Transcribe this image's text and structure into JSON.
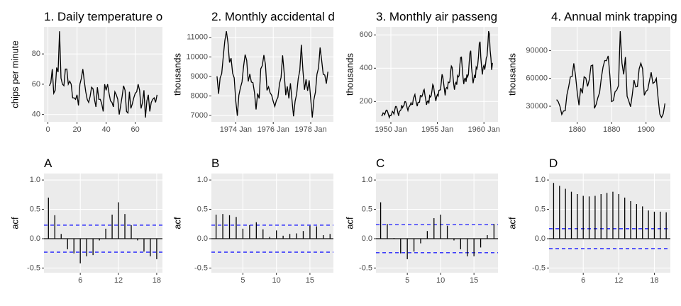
{
  "chart_data": [
    {
      "type": "line",
      "title": "1. Daily temperature o",
      "y_label": "chips per minute",
      "color": "#000000",
      "x": [
        1,
        2,
        3,
        4,
        5,
        6,
        7,
        8,
        9,
        10,
        11,
        12,
        13,
        14,
        15,
        16,
        17,
        18,
        19,
        20,
        21,
        22,
        23,
        24,
        25,
        26,
        27,
        28,
        29,
        30,
        31,
        32,
        33,
        34,
        35,
        36,
        37,
        38,
        39,
        40,
        41,
        42,
        43,
        44,
        45,
        46,
        47,
        48,
        49,
        50,
        51,
        52,
        53,
        54,
        55,
        56,
        57,
        58,
        59,
        60,
        61,
        62,
        63,
        64,
        65,
        66,
        67,
        68,
        69,
        70,
        71,
        72,
        73,
        74,
        75
      ],
      "values": [
        59,
        61,
        70,
        54,
        56,
        71,
        68,
        95,
        64,
        60,
        59,
        70,
        70,
        60,
        62,
        60,
        51,
        51,
        50,
        53,
        46,
        60,
        64,
        70,
        62,
        55,
        50,
        48,
        52,
        58,
        57,
        50,
        45,
        58,
        50,
        50,
        47,
        42,
        60,
        56,
        60,
        54,
        49,
        48,
        45,
        55,
        53,
        50,
        40,
        46,
        52,
        59,
        56,
        42,
        41,
        55,
        44,
        47,
        51,
        54,
        55,
        60,
        56,
        44,
        48,
        56,
        38,
        49,
        53,
        42,
        48,
        50,
        51,
        48,
        53
      ],
      "xlim": [
        -2.7,
        78.7
      ],
      "ylim": [
        35.15,
        97.85
      ],
      "xticks": [
        0,
        20,
        40,
        60
      ],
      "yticks": [
        40,
        60,
        80
      ]
    },
    {
      "type": "line",
      "title": "2. Monthly accidental d",
      "y_label": "thousands",
      "color": "#000000",
      "x": [
        "1973-01",
        "1973-02",
        "1973-03",
        "1973-04",
        "1973-05",
        "1973-06",
        "1973-07",
        "1973-08",
        "1973-09",
        "1973-10",
        "1973-11",
        "1973-12",
        "1974-01",
        "1974-02",
        "1974-03",
        "1974-04",
        "1974-05",
        "1974-06",
        "1974-07",
        "1974-08",
        "1974-09",
        "1974-10",
        "1974-11",
        "1974-12",
        "1975-01",
        "1975-02",
        "1975-03",
        "1975-04",
        "1975-05",
        "1975-06",
        "1975-07",
        "1975-08",
        "1975-09",
        "1975-10",
        "1975-11",
        "1975-12",
        "1976-01",
        "1976-02",
        "1976-03",
        "1976-04",
        "1976-05",
        "1976-06",
        "1976-07",
        "1976-08",
        "1976-09",
        "1976-10",
        "1976-11",
        "1976-12",
        "1977-01",
        "1977-02",
        "1977-03",
        "1977-04",
        "1977-05",
        "1977-06",
        "1977-07",
        "1977-08",
        "1977-09",
        "1977-10",
        "1977-11",
        "1977-12",
        "1978-01",
        "1978-02",
        "1978-03",
        "1978-04",
        "1978-05",
        "1978-06",
        "1978-07",
        "1978-08",
        "1978-09",
        "1978-10",
        "1978-11",
        "1978-12"
      ],
      "values": [
        9007,
        8106,
        8928,
        9137,
        10017,
        10826,
        11317,
        10744,
        9713,
        9938,
        9161,
        8927,
        7750,
        6981,
        8038,
        8422,
        8714,
        9512,
        10120,
        9823,
        8743,
        9129,
        8710,
        8680,
        8162,
        7306,
        8124,
        7870,
        9387,
        9556,
        10093,
        9620,
        8285,
        8466,
        8160,
        8034,
        7717,
        7461,
        7767,
        7925,
        8623,
        8945,
        10078,
        9179,
        8037,
        8488,
        7874,
        8647,
        7792,
        6957,
        7726,
        8106,
        8890,
        9299,
        10625,
        9302,
        8314,
        8850,
        8265,
        8796,
        7836,
        6892,
        7791,
        8192,
        9115,
        9434,
        10484,
        9827,
        9110,
        9070,
        8633,
        9240
      ],
      "xlim": [
        1972.7,
        1979.21
      ],
      "ylim": [
        6671,
        11538
      ],
      "xticks": [
        {
          "value": 1974,
          "label": "1974 Jan"
        },
        {
          "value": 1976,
          "label": "1976 Jan"
        },
        {
          "value": 1978,
          "label": "1978 Jan"
        }
      ],
      "yticks": [
        7000,
        8000,
        9000,
        10000,
        11000
      ]
    },
    {
      "type": "line",
      "title": "3. Monthly air passeng",
      "y_label": "thousands",
      "color": "#000000",
      "x": [
        "1949-01",
        "1949-02",
        "1949-03",
        "1949-04",
        "1949-05",
        "1949-06",
        "1949-07",
        "1949-08",
        "1949-09",
        "1949-10",
        "1949-11",
        "1949-12",
        "1950-01",
        "1950-02",
        "1950-03",
        "1950-04",
        "1950-05",
        "1950-06",
        "1950-07",
        "1950-08",
        "1950-09",
        "1950-10",
        "1950-11",
        "1950-12",
        "1951-01",
        "1951-02",
        "1951-03",
        "1951-04",
        "1951-05",
        "1951-06",
        "1951-07",
        "1951-08",
        "1951-09",
        "1951-10",
        "1951-11",
        "1951-12",
        "1952-01",
        "1952-02",
        "1952-03",
        "1952-04",
        "1952-05",
        "1952-06",
        "1952-07",
        "1952-08",
        "1952-09",
        "1952-10",
        "1952-11",
        "1952-12",
        "1953-01",
        "1953-02",
        "1953-03",
        "1953-04",
        "1953-05",
        "1953-06",
        "1953-07",
        "1953-08",
        "1953-09",
        "1953-10",
        "1953-11",
        "1953-12",
        "1954-01",
        "1954-02",
        "1954-03",
        "1954-04",
        "1954-05",
        "1954-06",
        "1954-07",
        "1954-08",
        "1954-09",
        "1954-10",
        "1954-11",
        "1954-12",
        "1955-01",
        "1955-02",
        "1955-03",
        "1955-04",
        "1955-05",
        "1955-06",
        "1955-07",
        "1955-08",
        "1955-09",
        "1955-10",
        "1955-11",
        "1955-12",
        "1956-01",
        "1956-02",
        "1956-03",
        "1956-04",
        "1956-05",
        "1956-06",
        "1956-07",
        "1956-08",
        "1956-09",
        "1956-10",
        "1956-11",
        "1956-12",
        "1957-01",
        "1957-02",
        "1957-03",
        "1957-04",
        "1957-05",
        "1957-06",
        "1957-07",
        "1957-08",
        "1957-09",
        "1957-10",
        "1957-11",
        "1957-12",
        "1958-01",
        "1958-02",
        "1958-03",
        "1958-04",
        "1958-05",
        "1958-06",
        "1958-07",
        "1958-08",
        "1958-09",
        "1958-10",
        "1958-11",
        "1958-12",
        "1959-01",
        "1959-02",
        "1959-03",
        "1959-04",
        "1959-05",
        "1959-06",
        "1959-07",
        "1959-08",
        "1959-09",
        "1959-10",
        "1959-11",
        "1959-12",
        "1960-01",
        "1960-02",
        "1960-03",
        "1960-04",
        "1960-05",
        "1960-06",
        "1960-07",
        "1960-08",
        "1960-09",
        "1960-10",
        "1960-11",
        "1960-12"
      ],
      "values": [
        112,
        118,
        132,
        129,
        121,
        135,
        148,
        148,
        136,
        119,
        104,
        118,
        115,
        126,
        141,
        135,
        125,
        149,
        170,
        170,
        158,
        133,
        114,
        140,
        145,
        150,
        178,
        163,
        172,
        178,
        199,
        199,
        184,
        162,
        146,
        166,
        171,
        180,
        193,
        181,
        183,
        218,
        230,
        242,
        209,
        191,
        172,
        194,
        196,
        196,
        236,
        235,
        229,
        243,
        264,
        272,
        237,
        211,
        180,
        201,
        204,
        188,
        235,
        227,
        234,
        264,
        302,
        293,
        259,
        229,
        203,
        229,
        242,
        233,
        267,
        269,
        270,
        315,
        364,
        347,
        312,
        274,
        237,
        278,
        284,
        277,
        317,
        313,
        318,
        374,
        413,
        405,
        355,
        306,
        271,
        306,
        315,
        301,
        356,
        348,
        355,
        422,
        465,
        467,
        404,
        347,
        305,
        336,
        340,
        318,
        362,
        348,
        363,
        435,
        491,
        505,
        404,
        359,
        310,
        337,
        360,
        342,
        406,
        396,
        420,
        472,
        548,
        559,
        463,
        407,
        362,
        405,
        417,
        391,
        419,
        461,
        472,
        535,
        622,
        606,
        508,
        461,
        390,
        432
      ],
      "xlim": [
        1948.4,
        1961.51
      ],
      "ylim": [
        78.1,
        647.9
      ],
      "xticks": [
        {
          "value": 1950,
          "label": "1950 Jan"
        },
        {
          "value": 1955,
          "label": "1955 Jan"
        },
        {
          "value": 1960,
          "label": "1960 Jan"
        }
      ],
      "yticks": [
        200,
        400,
        600
      ]
    },
    {
      "type": "line",
      "title": "4. Annual mink trapping",
      "y_label": "thousands",
      "color": "#000000",
      "x": [
        1848,
        1849,
        1850,
        1851,
        1852,
        1853,
        1854,
        1855,
        1856,
        1857,
        1858,
        1859,
        1860,
        1861,
        1862,
        1863,
        1864,
        1865,
        1866,
        1867,
        1868,
        1869,
        1870,
        1871,
        1872,
        1873,
        1874,
        1875,
        1876,
        1877,
        1878,
        1879,
        1880,
        1881,
        1882,
        1883,
        1884,
        1885,
        1886,
        1887,
        1888,
        1889,
        1890,
        1891,
        1892,
        1893,
        1894,
        1895,
        1896,
        1897,
        1898,
        1899,
        1900,
        1901,
        1902,
        1903,
        1904,
        1905,
        1906,
        1907,
        1908,
        1909,
        1910,
        1911
      ],
      "values": [
        37123,
        34712,
        29619,
        21151,
        24859,
        25152,
        42375,
        50839,
        61581,
        61951,
        76231,
        63264,
        44730,
        31094,
        49452,
        43961,
        61727,
        60334,
        51404,
        58451,
        73575,
        74343,
        27708,
        31985,
        39266,
        44740,
        60429,
        72273,
        79214,
        79060,
        84244,
        62590,
        35072,
        36160,
        45600,
        47508,
        52290,
        110824,
        76503,
        64303,
        83023,
        40748,
        35596,
        29479,
        42264,
        58171,
        50815,
        51285,
        70229,
        76365,
        70407,
        41839,
        45978,
        47813,
        57620,
        66549,
        54673,
        55996,
        60053,
        39169,
        21534,
        17857,
        21788,
        33008
      ],
      "xlim": [
        1844.85,
        1914.15
      ],
      "ylim": [
        13209,
        115472
      ],
      "xticks": [
        1860,
        1880,
        1900
      ],
      "yticks": [
        30000,
        60000,
        90000
      ]
    },
    {
      "type": "bar",
      "title": "A",
      "y_label": "acf",
      "color": "#000000",
      "conf_limits": [
        0.23,
        -0.23
      ],
      "conf_color": "#0000ff",
      "x": [
        1,
        2,
        3,
        4,
        5,
        6,
        7,
        8,
        9,
        10,
        11,
        12,
        13,
        14,
        15,
        16,
        17,
        18
      ],
      "values": [
        0.7,
        0.4,
        0.08,
        -0.18,
        -0.25,
        -0.42,
        -0.3,
        -0.28,
        -0.03,
        0.17,
        0.41,
        0.62,
        0.42,
        0.23,
        -0.03,
        -0.22,
        -0.3,
        -0.35
      ],
      "xlim": [
        0.3,
        18.9
      ],
      "ylim": [
        -0.58,
        1.11
      ],
      "xticks": [
        6,
        12,
        18
      ],
      "yticks": [
        -0.5,
        {
          "value": 0,
          "label": "0.0"
        },
        0.5,
        {
          "value": 1,
          "label": "1.0"
        }
      ]
    },
    {
      "type": "bar",
      "title": "B",
      "y_label": "acf",
      "color": "#000000",
      "conf_limits": [
        0.23,
        -0.23
      ],
      "conf_color": "#0000ff",
      "x": [
        1,
        2,
        3,
        4,
        5,
        6,
        7,
        8,
        9,
        10,
        11,
        12,
        13,
        14,
        15,
        16,
        17,
        18
      ],
      "values": [
        0.41,
        0.42,
        0.4,
        0.37,
        0.17,
        0.23,
        0.28,
        0.16,
        0.03,
        0.14,
        0.05,
        0.08,
        0.09,
        0.13,
        0.22,
        0.21,
        0.06,
        0.08
      ],
      "xlim": [
        0.3,
        18.5
      ],
      "ylim": [
        -0.58,
        1.11
      ],
      "xticks": [
        5,
        10,
        15
      ],
      "yticks": [
        -0.5,
        {
          "value": 0,
          "label": "0.0"
        },
        0.5,
        {
          "value": 1,
          "label": "1.0"
        }
      ]
    },
    {
      "type": "bar",
      "title": "C",
      "y_label": "acf",
      "color": "#000000",
      "conf_limits": [
        0.24,
        -0.24
      ],
      "conf_color": "#0000ff",
      "x": [
        1,
        2,
        3,
        4,
        5,
        6,
        7,
        8,
        9,
        10,
        11,
        12,
        13,
        14,
        15,
        16,
        17,
        18
      ],
      "values": [
        0.62,
        0.25,
        0.01,
        -0.25,
        -0.35,
        -0.22,
        -0.08,
        0.13,
        0.35,
        0.41,
        0.22,
        -0.03,
        -0.18,
        -0.3,
        -0.3,
        -0.15,
        0.06,
        0.25
      ],
      "xlim": [
        0.3,
        18.6
      ],
      "ylim": [
        -0.58,
        1.11
      ],
      "xticks": [
        5,
        10,
        15
      ],
      "yticks": [
        -0.5,
        {
          "value": 0,
          "label": "0.0"
        },
        0.5,
        {
          "value": 1,
          "label": "1.0"
        }
      ]
    },
    {
      "type": "bar",
      "title": "D",
      "y_label": "acf",
      "color": "#000000",
      "conf_limits": [
        0.17,
        -0.17
      ],
      "conf_color": "#0000ff",
      "x": [
        1,
        2,
        3,
        4,
        5,
        6,
        7,
        8,
        9,
        10,
        11,
        12,
        13,
        14,
        15,
        16,
        17,
        18,
        19,
        20
      ],
      "values": [
        0.95,
        0.9,
        0.85,
        0.8,
        0.76,
        0.73,
        0.72,
        0.73,
        0.76,
        0.78,
        0.8,
        0.76,
        0.7,
        0.64,
        0.59,
        0.55,
        0.48,
        0.46,
        0.46,
        0.45
      ],
      "xlim": [
        0.23,
        20.7
      ],
      "ylim": [
        -0.58,
        1.11
      ],
      "xticks": [
        6,
        12,
        18
      ],
      "yticks": [
        -0.5,
        {
          "value": 0,
          "label": "0.0"
        },
        0.5,
        {
          "value": 1,
          "label": "1.0"
        }
      ]
    }
  ]
}
